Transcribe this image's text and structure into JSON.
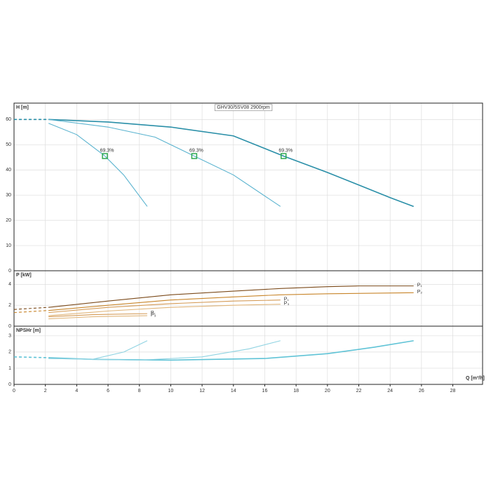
{
  "chart_data": [
    {
      "type": "line",
      "title": "GHV30/5SV08 2900rpm",
      "ylabel": "H [m]",
      "ylim": [
        0,
        66.5
      ],
      "yticks": [
        0,
        10,
        20,
        30,
        40,
        50,
        60
      ],
      "grid": true,
      "series": [
        {
          "color": "#2a8fa8",
          "style": "dashed",
          "x": [
            0,
            2.2
          ],
          "values": [
            60,
            60
          ]
        },
        {
          "color": "#2a8fa8",
          "style": "solid",
          "x": [
            2.2,
            6,
            10,
            14,
            17.2,
            20,
            22,
            24,
            25.5
          ],
          "values": [
            60,
            59,
            57,
            53.5,
            45.5,
            39,
            34,
            29,
            25.5
          ]
        },
        {
          "color": "#5ab3cf",
          "style": "solid",
          "x": [
            2.2,
            6,
            9,
            11.5,
            14,
            17
          ],
          "values": [
            60,
            57,
            53,
            45.5,
            38,
            25.5
          ]
        },
        {
          "color": "#5ab3cf",
          "style": "solid",
          "x": [
            2.2,
            4,
            5.8,
            7,
            8.5
          ],
          "values": [
            58.5,
            54,
            45.5,
            38,
            25.5
          ]
        }
      ],
      "markers": [
        {
          "x": 5.8,
          "y": 45.5,
          "label": "69.3%"
        },
        {
          "x": 11.5,
          "y": 45.5,
          "label": "69.3%"
        },
        {
          "x": 17.2,
          "y": 45.5,
          "label": "69.3%"
        }
      ],
      "marker_color": "#2fa84f"
    },
    {
      "type": "line",
      "ylabel": "P [kW]",
      "ylim": [
        0,
        5.3
      ],
      "yticks": [
        0,
        2,
        4
      ],
      "grid": true,
      "series": [
        {
          "color": "#7b4a1a",
          "style": "dashed",
          "x": [
            0,
            2.2
          ],
          "values": [
            1.6,
            1.8
          ]
        },
        {
          "color": "#7b4a1a",
          "style": "solid",
          "x": [
            2.2,
            6,
            10,
            14,
            17,
            20,
            22,
            25.5
          ],
          "values": [
            1.8,
            2.4,
            3.0,
            3.35,
            3.6,
            3.78,
            3.85,
            3.85
          ],
          "label": "P₁"
        },
        {
          "color": "#c8852a",
          "style": "dashed",
          "x": [
            0,
            2.2
          ],
          "values": [
            1.3,
            1.5
          ]
        },
        {
          "color": "#c8852a",
          "style": "solid",
          "x": [
            2.2,
            6,
            10,
            14,
            17,
            20,
            25.5
          ],
          "values": [
            1.5,
            2.0,
            2.5,
            2.8,
            3.0,
            3.1,
            3.2
          ],
          "label": "P₂"
        },
        {
          "color": "#d49a55",
          "style": "solid",
          "x": [
            2.2,
            6,
            10,
            14,
            17
          ],
          "values": [
            1.3,
            1.8,
            2.15,
            2.4,
            2.5
          ],
          "label": "P₁"
        },
        {
          "color": "#e0b57a",
          "style": "solid",
          "x": [
            2.2,
            6,
            10,
            14,
            17
          ],
          "values": [
            1.0,
            1.45,
            1.8,
            2.0,
            2.1
          ],
          "label": "P₃"
        },
        {
          "color": "#d49a55",
          "style": "solid",
          "x": [
            2.2,
            5,
            8.5
          ],
          "values": [
            0.9,
            1.1,
            1.2
          ],
          "label": "P₁"
        },
        {
          "color": "#e0b57a",
          "style": "solid",
          "x": [
            2.2,
            5,
            8.5
          ],
          "values": [
            0.7,
            0.9,
            1.0
          ],
          "label": "P₃"
        }
      ]
    },
    {
      "type": "line",
      "ylabel": "NPSHr [m]",
      "ylim": [
        0,
        3.6
      ],
      "yticks": [
        0,
        1,
        2,
        3
      ],
      "grid": true,
      "xlabel": "Q [m³/h]",
      "xlim": [
        0,
        29.9
      ],
      "xticks": [
        0,
        2,
        4,
        6,
        8,
        10,
        12,
        14,
        16,
        18,
        20,
        22,
        24,
        26,
        28
      ],
      "series": [
        {
          "color": "#5fc3d6",
          "style": "dashed",
          "x": [
            0,
            2.2
          ],
          "values": [
            1.7,
            1.65
          ]
        },
        {
          "color": "#5fc3d6",
          "style": "solid",
          "x": [
            2.2,
            5,
            10,
            16,
            20,
            23,
            25.5
          ],
          "values": [
            1.65,
            1.55,
            1.5,
            1.6,
            1.9,
            2.3,
            2.7
          ]
        },
        {
          "color": "#8fd3e2",
          "style": "solid",
          "x": [
            2.2,
            8,
            12,
            15,
            17
          ],
          "values": [
            1.6,
            1.5,
            1.7,
            2.2,
            2.7
          ]
        },
        {
          "color": "#8fd3e2",
          "style": "solid",
          "x": [
            2.2,
            5,
            7,
            8.5
          ],
          "values": [
            1.6,
            1.55,
            2.0,
            2.7
          ]
        }
      ]
    }
  ]
}
